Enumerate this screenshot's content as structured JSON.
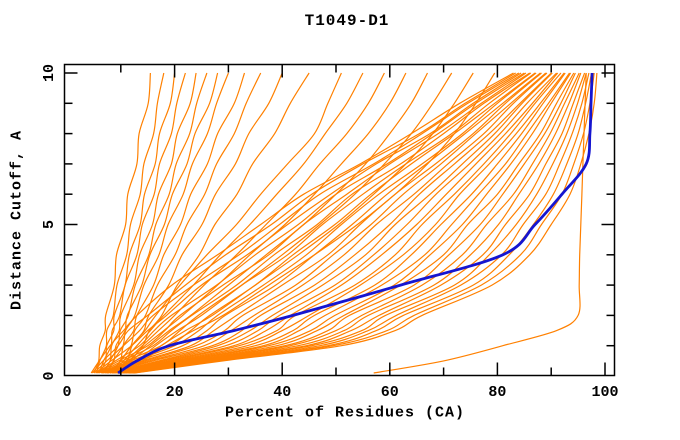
{
  "figure": {
    "title": "T1049-D1",
    "xlabel": "Percent of Residues (CA)",
    "ylabel": "Distance Cutoff, A"
  },
  "chart_data": {
    "type": "line",
    "title": "T1049-D1",
    "xlabel": "Percent of Residues (CA)",
    "ylabel": "Distance Cutoff, A",
    "xlim": [
      0,
      102
    ],
    "ylim": [
      0,
      10.3
    ],
    "x_ticks_major": [
      0,
      20,
      40,
      60,
      80,
      100
    ],
    "x_tick_minor_step": 10,
    "y_ticks_major": [
      0,
      5,
      10
    ],
    "y_tick_minor_step": 1,
    "grid": false,
    "legend": "none",
    "colors": {
      "models": "#ff8000",
      "highlight": "#1515d0",
      "axis": "#000000",
      "background": "#ffffff"
    },
    "description": "Cumulative model-accuracy curves: percent of CA residues (x) under a superposition distance cutoff in Angstroms (y). Many orange model curves, one blue highlighted model.",
    "y_levels": [
      0.1,
      0.5,
      1,
      1.5,
      2,
      3,
      4,
      5,
      6,
      7,
      8,
      9,
      10
    ],
    "highlight_model": {
      "x_at_y": [
        9.5,
        13,
        19,
        31,
        42,
        62,
        81,
        87,
        92,
        96.5,
        97.2,
        97.4,
        97.6
      ]
    },
    "models": [
      [
        4.5,
        6,
        8,
        10.5,
        13,
        19.5,
        28,
        36,
        44,
        54.5,
        64,
        73,
        83
      ],
      [
        4.7,
        6.7,
        9.5,
        11.4,
        15,
        22,
        29.5,
        38,
        45.5,
        55,
        65.5,
        74,
        83.4
      ],
      [
        5,
        7.4,
        10.5,
        13.5,
        16,
        23.5,
        32,
        39.5,
        47,
        57,
        66,
        74.5,
        84
      ],
      [
        5.3,
        8.2,
        12,
        15,
        18.5,
        25,
        33.5,
        41,
        49,
        57.5,
        67.5,
        75.5,
        84.4
      ],
      [
        5.5,
        9,
        13.5,
        16.2,
        19.4,
        27.8,
        35,
        43,
        50,
        59.5,
        68,
        76,
        85
      ],
      [
        5.7,
        9.6,
        15,
        18.2,
        21,
        29,
        37.5,
        44,
        52,
        60,
        69,
        77,
        85.3
      ],
      [
        6,
        10.3,
        16,
        19.4,
        23.2,
        31.5,
        38.5,
        46.5,
        53,
        62,
        70,
        77.5,
        86
      ],
      [
        6.3,
        11,
        17.5,
        21,
        24.4,
        32.5,
        41,
        47.5,
        55,
        63,
        71.5,
        78.5,
        86.2
      ],
      [
        6.5,
        11.8,
        19,
        23,
        26.5,
        35,
        42,
        49.8,
        56.5,
        64,
        72,
        79.5,
        87
      ],
      [
        6.7,
        12.5,
        20,
        24.5,
        28,
        36.5,
        44.5,
        51,
        58,
        66,
        73.5,
        80,
        87.2
      ],
      [
        7,
        13.2,
        21.5,
        26,
        29.4,
        38.8,
        46,
        53,
        59.5,
        66.8,
        74,
        81,
        88
      ],
      [
        7.3,
        14,
        23,
        27.3,
        31.5,
        40,
        48.5,
        54.5,
        61,
        68.5,
        75.5,
        81.5,
        88.2
      ],
      [
        7.5,
        14.6,
        24,
        29.3,
        32.7,
        42.5,
        49.5,
        56.5,
        62.5,
        69.5,
        76,
        82.5,
        89
      ],
      [
        7.7,
        15.3,
        25.5,
        30.5,
        34.8,
        43.8,
        51.5,
        57.5,
        64.5,
        70.8,
        77.5,
        83,
        89.2
      ],
      [
        8,
        16,
        27,
        32.5,
        36,
        46,
        53.5,
        60,
        65.5,
        72,
        78.5,
        84.2,
        90
      ],
      [
        8.3,
        17,
        28,
        34,
        38.2,
        47.5,
        55.5,
        61,
        67.5,
        73.5,
        79.5,
        84.6,
        90.2
      ],
      [
        8.5,
        17.5,
        29.5,
        35.5,
        39.5,
        49.8,
        57,
        63.2,
        68.6,
        74.8,
        80.5,
        85.5,
        91
      ],
      [
        8.7,
        18.2,
        31,
        37,
        41.5,
        51,
        58.5,
        65,
        70.5,
        76,
        81.5,
        86.5,
        91.2
      ],
      [
        9,
        19,
        32,
        39,
        42.5,
        53.5,
        61,
        66,
        72,
        77.5,
        82.5,
        87,
        91.8
      ],
      [
        9.3,
        19.7,
        33.5,
        40,
        45,
        54.5,
        62.5,
        68.5,
        73,
        78.5,
        83.5,
        88,
        92.4
      ],
      [
        9.5,
        20.4,
        35,
        42,
        46,
        57.2,
        64,
        69.5,
        75.2,
        80,
        84.5,
        88.5,
        92.6
      ],
      [
        9.7,
        21.1,
        36.5,
        43.2,
        48,
        58.5,
        66.5,
        71.5,
        76.5,
        81.5,
        85.5,
        89.5,
        93.4
      ],
      [
        10,
        21.8,
        37.5,
        45.3,
        49.8,
        60.8,
        67.5,
        73.5,
        78,
        82.5,
        86.5,
        90,
        93.6
      ],
      [
        10.3,
        22.5,
        39,
        46.5,
        51.5,
        62,
        70,
        74.5,
        80,
        84,
        88,
        91,
        94.2
      ],
      [
        10.5,
        23.3,
        40.5,
        48.5,
        52.5,
        64.5,
        71,
        76.8,
        81,
        85,
        88.8,
        91.8,
        94.5
      ],
      [
        10.7,
        24,
        41.5,
        50,
        54.8,
        66,
        73.5,
        78,
        83,
        86.5,
        89.8,
        92.5,
        95.2
      ],
      [
        11,
        24.7,
        43,
        51.5,
        56,
        68.2,
        75,
        80.2,
        84,
        87.7,
        90.8,
        93.3,
        95.5
      ],
      [
        11.3,
        25.4,
        44.5,
        52.8,
        58,
        69.5,
        77.3,
        81.5,
        86,
        89,
        92,
        94.1,
        96.2
      ],
      [
        11.5,
        26.1,
        45.5,
        54.8,
        59.2,
        72,
        78.5,
        83.5,
        87.3,
        90.3,
        92.9,
        94.9,
        96.5
      ],
      [
        11.7,
        26.8,
        47,
        56,
        61.2,
        73.2,
        80.8,
        84.8,
        89,
        91.6,
        93.9,
        95.7,
        97
      ],
      [
        12,
        27.6,
        48.5,
        57.5,
        62.5,
        75.5,
        82.2,
        86.7,
        90.4,
        92.9,
        95,
        96.4,
        97.5
      ],
      [
        12.3,
        28.3,
        49.5,
        59.5,
        64.5,
        77,
        84.3,
        88.2,
        92,
        94.2,
        96,
        97.2,
        98
      ],
      [
        12.5,
        29,
        51,
        61,
        66,
        79,
        86,
        90,
        93.5,
        95.5,
        97,
        98,
        98.5
      ],
      [
        5,
        5.9,
        6.1,
        7.1,
        7.2,
        8.8,
        9.2,
        10.9,
        11.3,
        13,
        13.4,
        15.1,
        15.5
      ],
      [
        5.5,
        6.1,
        7.3,
        7.4,
        8.6,
        9.3,
        11.1,
        11.8,
        13.6,
        14.3,
        16.1,
        16.8,
        18
      ],
      [
        6,
        7.2,
        7.4,
        8.7,
        8.8,
        10.8,
        11.6,
        13.6,
        14.4,
        16.4,
        17.2,
        19.2,
        20
      ],
      [
        6,
        6.8,
        8.2,
        8.4,
        9.8,
        10.8,
        13,
        14,
        16.2,
        17.2,
        19.4,
        20.4,
        22
      ],
      [
        6.5,
        8,
        8.3,
        9.7,
        10,
        12.4,
        13.5,
        15.9,
        17,
        19.4,
        20.5,
        22.9,
        24
      ],
      [
        7,
        8,
        9.5,
        9.9,
        11.4,
        12.7,
        15.2,
        16.5,
        19,
        20.3,
        22.8,
        24.1,
        26
      ],
      [
        7,
        8.7,
        9.1,
        10.8,
        11.2,
        13.9,
        15.4,
        18.1,
        19.6,
        22.3,
        23.8,
        26.5,
        28
      ],
      [
        7.5,
        8.6,
        10.4,
        10.9,
        12.6,
        14.3,
        17.1,
        18.8,
        21.6,
        23.3,
        26.1,
        27.8,
        30
      ],
      [
        8,
        9.9,
        10.5,
        12.4,
        13,
        16.1,
        18,
        21.1,
        23,
        26.1,
        28,
        31.1,
        33
      ],
      [
        8.5,
        9.9,
        11.9,
        12.6,
        14.6,
        16.8,
        20.1,
        22.3,
        25.6,
        27.8,
        31.1,
        33.3,
        36
      ],
      [
        9,
        11.2,
        12.1,
        14.3,
        15.2,
        18.9,
        21.4,
        25.1,
        27.6,
        31.3,
        33.8,
        37.5,
        40
      ],
      [
        10,
        11.8,
        14.1,
        15.3,
        17.6,
        20.5,
        24.6,
        27.5,
        31.6,
        34.5,
        38.6,
        41.5,
        45
      ],
      [
        8,
        10,
        12,
        14.5,
        16.5,
        21,
        26,
        31.5,
        36,
        41,
        46,
        48.5,
        51
      ],
      [
        8.5,
        10.5,
        13,
        15.5,
        18,
        23.5,
        28.5,
        34,
        39,
        44,
        48,
        52,
        55
      ],
      [
        9,
        11,
        14,
        17,
        20,
        25.5,
        31.5,
        37,
        42.5,
        47,
        52,
        56,
        59
      ],
      [
        9,
        11.5,
        14.5,
        18,
        21.5,
        28,
        34,
        40.5,
        46,
        51,
        56,
        60,
        63
      ],
      [
        9.5,
        12,
        15.5,
        19,
        23,
        30,
        37,
        44,
        50,
        55.5,
        60,
        64,
        67
      ],
      [
        10,
        13,
        16.5,
        20.5,
        25,
        32.5,
        40,
        47,
        53.5,
        59,
        64,
        68,
        71.5
      ],
      [
        10,
        13.5,
        17.5,
        22,
        27,
        35,
        43,
        50.5,
        57,
        63,
        68,
        72,
        75.5
      ],
      [
        11,
        14,
        18.5,
        23.5,
        29,
        37.5,
        46,
        54,
        61,
        67,
        72,
        76,
        79.5
      ],
      [
        57,
        70,
        81,
        91,
        95,
        95.2,
        95.3,
        95.5,
        95.7,
        95.9,
        96.1,
        96.3,
        96.5
      ]
    ]
  }
}
